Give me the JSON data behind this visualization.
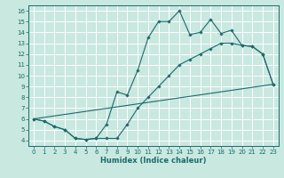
{
  "title": "",
  "xlabel": "Humidex (Indice chaleur)",
  "bg_color": "#c8e8e0",
  "grid_color": "#ffffff",
  "line_color": "#1a6b6b",
  "xlim": [
    -0.5,
    23.5
  ],
  "ylim": [
    3.5,
    16.5
  ],
  "xticks": [
    0,
    1,
    2,
    3,
    4,
    5,
    6,
    7,
    8,
    9,
    10,
    11,
    12,
    13,
    14,
    15,
    16,
    17,
    18,
    19,
    20,
    21,
    22,
    23
  ],
  "yticks": [
    4,
    5,
    6,
    7,
    8,
    9,
    10,
    11,
    12,
    13,
    14,
    15,
    16
  ],
  "line1_x": [
    0,
    1,
    2,
    3,
    4,
    5,
    6,
    7,
    8,
    9,
    10,
    11,
    12,
    13,
    14,
    15,
    16,
    17,
    18,
    19,
    20,
    21,
    22,
    23
  ],
  "line1_y": [
    6.0,
    5.8,
    5.3,
    5.0,
    4.2,
    4.1,
    4.2,
    5.5,
    8.5,
    8.2,
    10.5,
    13.5,
    15.0,
    15.0,
    16.0,
    13.8,
    14.0,
    15.2,
    13.9,
    14.2,
    12.8,
    12.7,
    12.0,
    9.2
  ],
  "line2_x": [
    0,
    1,
    2,
    3,
    4,
    5,
    6,
    7,
    8,
    9,
    10,
    11,
    12,
    13,
    14,
    15,
    16,
    17,
    18,
    19,
    20,
    21,
    22,
    23
  ],
  "line2_y": [
    6.0,
    5.8,
    5.3,
    5.0,
    4.2,
    4.1,
    4.2,
    4.2,
    4.2,
    5.5,
    7.0,
    8.0,
    9.0,
    10.0,
    11.0,
    11.5,
    12.0,
    12.5,
    13.0,
    13.0,
    12.8,
    12.7,
    12.0,
    9.2
  ],
  "line3_x": [
    0,
    23
  ],
  "line3_y": [
    6.0,
    9.2
  ]
}
